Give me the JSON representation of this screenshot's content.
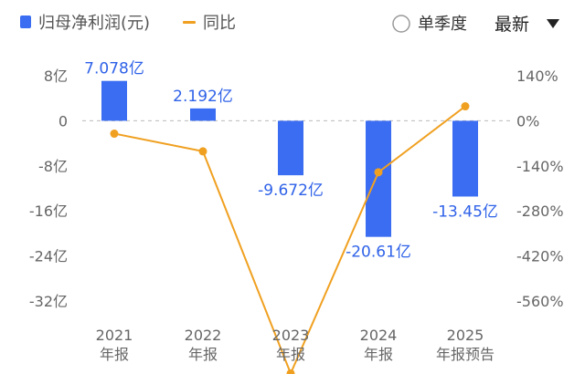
{
  "legend": {
    "series1": "归母净利润(元)",
    "series2": "同比"
  },
  "controls": {
    "quarter_toggle": "单季度",
    "sort_select": "最新"
  },
  "colors": {
    "bar": "#3b6df2",
    "line": "#f0a020",
    "grid": "#bbbbbb"
  },
  "icons": {
    "toggle": "radio-circle-icon",
    "dropdown": "triangle-down-icon"
  },
  "chart_data": {
    "type": "bar",
    "categories": [
      [
        "2021",
        "年报"
      ],
      [
        "2022",
        "年报"
      ],
      [
        "2023",
        "年报"
      ],
      [
        "2024",
        "年报"
      ],
      [
        "2025",
        "年报预告"
      ]
    ],
    "series": [
      {
        "name": "归母净利润(元)",
        "type": "bar",
        "axis": "left",
        "values": [
          7.078,
          2.192,
          -9.672,
          -20.61,
          -13.45
        ],
        "labels": [
          "7.078亿",
          "2.192亿",
          "-9.672亿",
          "-20.61亿",
          "-13.45亿"
        ]
      },
      {
        "name": "同比",
        "type": "line",
        "axis": "right",
        "values": [
          -40,
          -95,
          -785,
          -160,
          45
        ]
      }
    ],
    "left_axis": {
      "ticks": [
        8,
        0,
        -8,
        -16,
        -24,
        -32
      ],
      "tick_labels": [
        "8亿",
        "0",
        "-8亿",
        "-16亿",
        "-24亿",
        "-32亿"
      ],
      "range": [
        -32,
        8
      ]
    },
    "right_axis": {
      "ticks": [
        140,
        0,
        -140,
        -280,
        -420,
        -560
      ],
      "tick_labels": [
        "140%",
        "0%",
        "-140%",
        "-280%",
        "-420%",
        "-560%"
      ],
      "range": [
        -560,
        140
      ]
    },
    "grid": "dashed zero line",
    "legend_position": "top-left"
  }
}
